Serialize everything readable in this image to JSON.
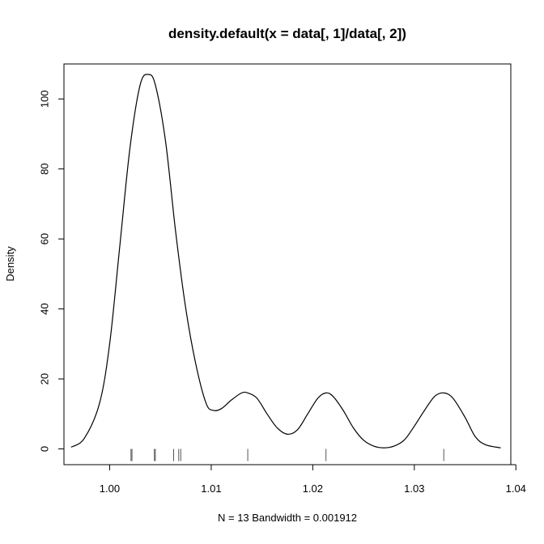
{
  "chart_data": {
    "type": "line",
    "title": "density.default(x = data[, 1]/data[, 2])",
    "xlabel": "N = 13   Bandwidth = 0.001912",
    "ylabel": "Density",
    "xlim": [
      0.9955,
      1.0395
    ],
    "ylim": [
      -4.5,
      110
    ],
    "x_ticks": [
      1.0,
      1.01,
      1.02,
      1.03,
      1.04
    ],
    "x_tick_labels": [
      "1.00",
      "1.01",
      "1.02",
      "1.03",
      "1.04"
    ],
    "y_ticks": [
      0,
      20,
      40,
      60,
      80,
      100
    ],
    "y_tick_labels": [
      "0",
      "20",
      "40",
      "60",
      "80",
      "100"
    ],
    "grid": false,
    "legend": "none",
    "line_color": "#000000",
    "rug_color": "#555555",
    "series": [
      {
        "x": [
          0.9962,
          0.9975,
          0.999,
          1.0,
          1.001,
          1.002,
          1.003,
          1.0038,
          1.0045,
          1.0055,
          1.0065,
          1.0075,
          1.0085,
          1.0095,
          1.0102,
          1.011,
          1.012,
          1.013,
          1.0136,
          1.0145,
          1.0155,
          1.0165,
          1.0175,
          1.0185,
          1.0195,
          1.0205,
          1.0213,
          1.022,
          1.023,
          1.024,
          1.025,
          1.026,
          1.027,
          1.028,
          1.029,
          1.03,
          1.031,
          1.032,
          1.0329,
          1.0338,
          1.035,
          1.036,
          1.037,
          1.0385
        ],
        "y": [
          0.5,
          3,
          13,
          30,
          58,
          86,
          104,
          107,
          104,
          88,
          62,
          40,
          24,
          13,
          11,
          11.5,
          14,
          16,
          16,
          14.5,
          10,
          6,
          4.2,
          5.5,
          10,
          14.5,
          16,
          15,
          11,
          6,
          2.5,
          0.8,
          0.3,
          0.8,
          2.5,
          6.5,
          11,
          15,
          16,
          14.5,
          9,
          3.5,
          1.2,
          0.3
        ]
      }
    ],
    "rug": [
      1.0021,
      1.0022,
      1.0044,
      1.0045,
      1.0063,
      1.0068,
      1.007,
      1.0136,
      1.0213,
      1.0329
    ]
  }
}
